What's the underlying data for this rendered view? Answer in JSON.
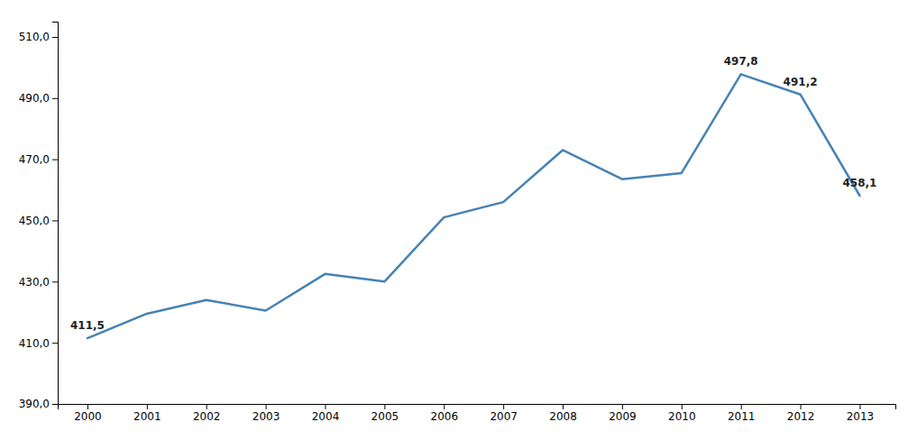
{
  "chart_data": {
    "type": "line",
    "x": [
      2000,
      2001,
      2002,
      2003,
      2004,
      2005,
      2006,
      2007,
      2008,
      2009,
      2010,
      2011,
      2012,
      2013
    ],
    "values": [
      411.5,
      419.5,
      424.0,
      420.5,
      432.5,
      430.0,
      451.0,
      456.0,
      473.0,
      463.5,
      465.5,
      497.8,
      491.2,
      458.1
    ],
    "xlim": [
      1999.5,
      2013.6
    ],
    "xticks": [
      2000,
      2001,
      2002,
      2003,
      2004,
      2005,
      2006,
      2007,
      2008,
      2009,
      2010,
      2011,
      2012,
      2013
    ],
    "ylim": [
      390.0,
      515.0
    ],
    "yticks": [
      {
        "value": 390.0,
        "label": "390,0"
      },
      {
        "value": 410.0,
        "label": "410,0"
      },
      {
        "value": 430.0,
        "label": "430,0"
      },
      {
        "value": 450.0,
        "label": "450,0"
      },
      {
        "value": 470.0,
        "label": "470,0"
      },
      {
        "value": 490.0,
        "label": "490,0"
      },
      {
        "value": 510.0,
        "label": "510,0"
      }
    ],
    "annotations": [
      {
        "x": 2000,
        "y": 411.5,
        "text": "411,5"
      },
      {
        "x": 2011,
        "y": 497.8,
        "text": "497,8"
      },
      {
        "x": 2012,
        "y": 491.2,
        "text": "491,2"
      },
      {
        "x": 2013,
        "y": 458.1,
        "text": "458,1"
      }
    ],
    "grid": false
  }
}
